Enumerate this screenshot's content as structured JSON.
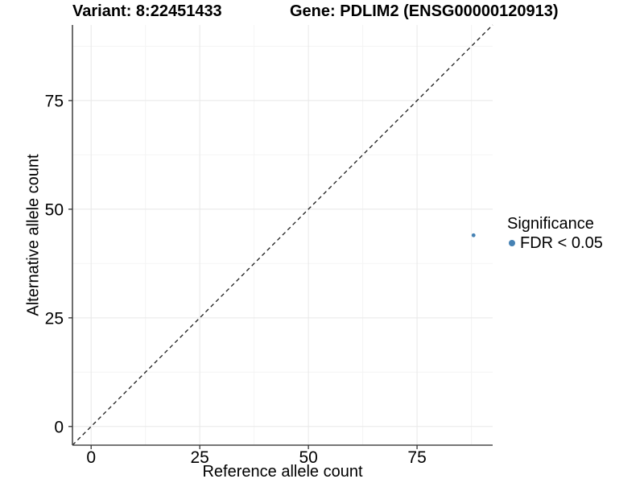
{
  "title": {
    "variant": "Variant: 8:22451433",
    "gene": "Gene: PDLIM2 (ENSG00000120913)"
  },
  "axes": {
    "x_label": "Reference allele count",
    "y_label": "Alternative allele count"
  },
  "legend": {
    "title": "Significance",
    "items": [
      {
        "label": "FDR < 0.05",
        "color": "#4682b4"
      }
    ]
  },
  "colors": {
    "point": "#4682b4",
    "grid_major": "#e8e8e8",
    "grid_minor": "#f4f4f4",
    "axis_line": "#4a4a4a",
    "tick_mark": "#333333",
    "identity_line": "#1a1a1a",
    "background": "#ffffff"
  },
  "chart_data": {
    "type": "scatter",
    "title": "Variant: 8:22451433   Gene: PDLIM2 (ENSG00000120913)",
    "xlabel": "Reference allele count",
    "ylabel": "Alternative allele count",
    "series": [
      {
        "name": "FDR < 0.05",
        "color": "#4682b4",
        "points": [
          {
            "x": 88,
            "y": 44
          }
        ]
      }
    ],
    "identity_line": {
      "shown": true,
      "style": "dashed",
      "slope": 1,
      "intercept": 0
    },
    "xlim": [
      -4.3,
      92.4
    ],
    "ylim": [
      -4.3,
      92.4
    ],
    "x_ticks": [
      0,
      25,
      50,
      75
    ],
    "y_ticks": [
      0,
      25,
      50,
      75
    ],
    "x_minor_ticks": [
      12.5,
      37.5,
      62.5,
      87.5
    ],
    "y_minor_ticks": [
      12.5,
      37.5,
      62.5,
      87.5
    ],
    "grid": true,
    "legend_position": "right",
    "legend_title": "Significance"
  }
}
